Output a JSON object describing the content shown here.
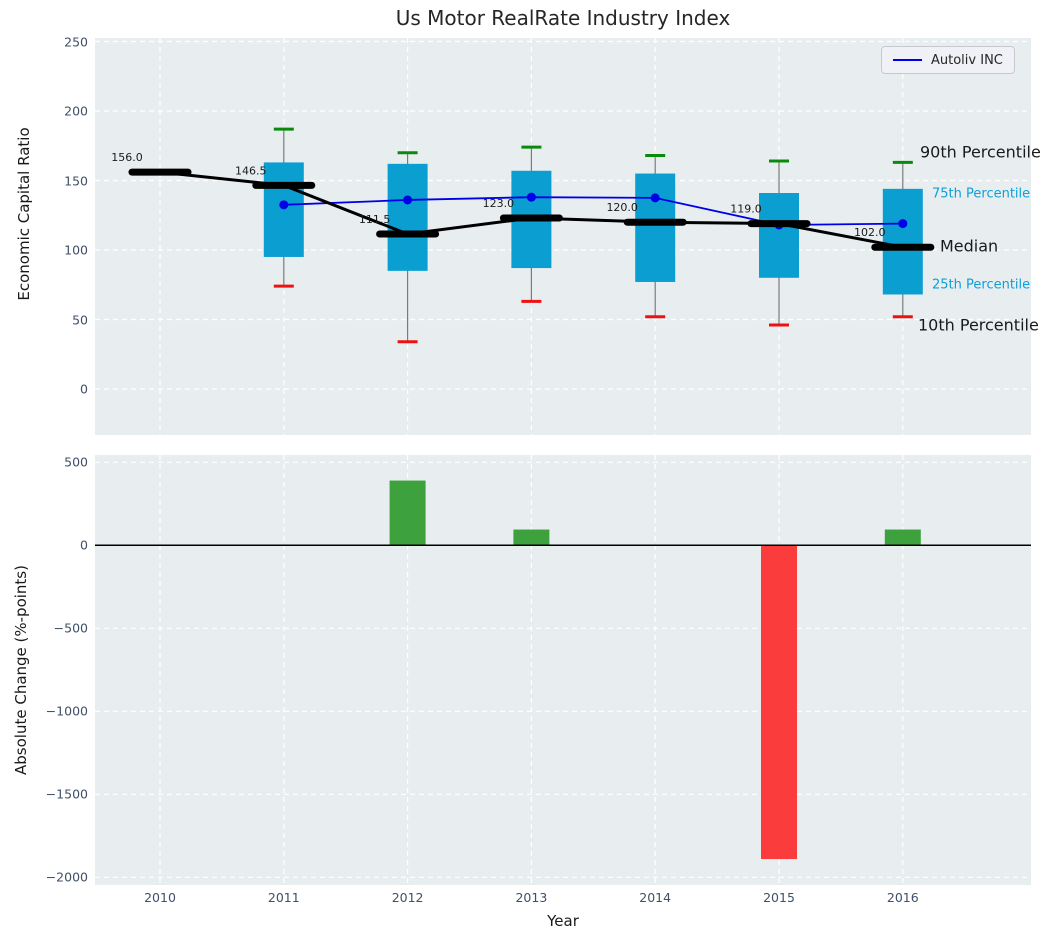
{
  "figure_title": "Us Motor RealRate Industry Index",
  "chart_data": [
    {
      "type": "box",
      "title": "Us Motor RealRate Industry Index",
      "ylabel": "Economic Capital Ratio",
      "ylim": [
        -33,
        252
      ],
      "grid": true,
      "legend_label": "Autoliv INC",
      "legend_position": "upper right",
      "yticks": [
        {
          "v": 250,
          "label": "250"
        },
        {
          "v": 200,
          "label": "200"
        },
        {
          "v": 150,
          "label": "150"
        },
        {
          "v": 100,
          "label": "100"
        },
        {
          "v": 50,
          "label": "50"
        },
        {
          "v": 0,
          "label": "0"
        }
      ],
      "years": [
        2010,
        2011,
        2012,
        2013,
        2014,
        2015,
        2016
      ],
      "boxes": [
        {
          "year": 2010,
          "median": 156.0,
          "label": "156.0"
        },
        {
          "year": 2011,
          "p10": 74,
          "p25": 95,
          "median": 146.5,
          "p75": 163,
          "p90": 187,
          "label": "146.5"
        },
        {
          "year": 2012,
          "p10": 34,
          "p25": 85,
          "median": 111.5,
          "p75": 162,
          "p90": 170,
          "label": "111.5"
        },
        {
          "year": 2013,
          "p10": 63,
          "p25": 87,
          "median": 123.0,
          "p75": 157,
          "p90": 174,
          "label": "123.0"
        },
        {
          "year": 2014,
          "p10": 52,
          "p25": 77,
          "median": 120.0,
          "p75": 155,
          "p90": 168,
          "label": "120.0"
        },
        {
          "year": 2015,
          "p10": 46,
          "p25": 80,
          "median": 119.0,
          "p75": 141,
          "p90": 164,
          "label": "119.0"
        },
        {
          "year": 2016,
          "p10": 52,
          "p25": 68,
          "median": 102.0,
          "p75": 144,
          "p90": 163,
          "label": "102.0"
        }
      ],
      "series": [
        {
          "name": "Autoliv INC",
          "x": [
            2011,
            2012,
            2013,
            2014,
            2015,
            2016
          ],
          "y": [
            132.5,
            136,
            138,
            137.5,
            118,
            119
          ]
        }
      ],
      "annotations": [
        {
          "text": "90th Percentile",
          "x": 920,
          "y": 152,
          "size": 16,
          "color": "#1a1a1a"
        },
        {
          "text": "75th Percentile",
          "x": 932,
          "y": 194,
          "size": 13,
          "color": "#0d9fd6"
        },
        {
          "text": "Median",
          "x": 940,
          "y": 246,
          "size": 16,
          "color": "#1a1a1a"
        },
        {
          "text": "25th Percentile",
          "x": 932,
          "y": 285,
          "size": 13,
          "color": "#0d9fd6"
        },
        {
          "text": "10th Percentile",
          "x": 918,
          "y": 325,
          "size": 16,
          "color": "#1a1a1a"
        }
      ],
      "colors": {
        "box_fill": "#0a9ed1",
        "whisker": "#7a7a7a",
        "cap_90th": "#0a8a0a",
        "cap_10th": "#f01010",
        "median": "#000000",
        "series_line": "#0000e8",
        "axes_background": "#e8eef0",
        "tick_label": "#3f5068"
      }
    },
    {
      "type": "bar",
      "ylabel": "Absolute Change (%-points)",
      "xlabel": "Year",
      "ylim": [
        -2042,
        548
      ],
      "grid": true,
      "yticks": [
        {
          "v": 500,
          "label": "500"
        },
        {
          "v": 0,
          "label": "0"
        },
        {
          "v": -500,
          "label": "−500"
        },
        {
          "v": -1000,
          "label": "−1000"
        },
        {
          "v": -1500,
          "label": "−1500"
        },
        {
          "v": -2000,
          "label": "−2000"
        }
      ],
      "categories": [
        "2010",
        "2011",
        "2012",
        "2013",
        "2014",
        "2015",
        "2016"
      ],
      "values": [
        0,
        0,
        390,
        95,
        0,
        -1890,
        95
      ],
      "colors": {
        "positive": "#3da23d",
        "negative": "#fa3c3c",
        "zero_line": "#000000"
      }
    }
  ]
}
